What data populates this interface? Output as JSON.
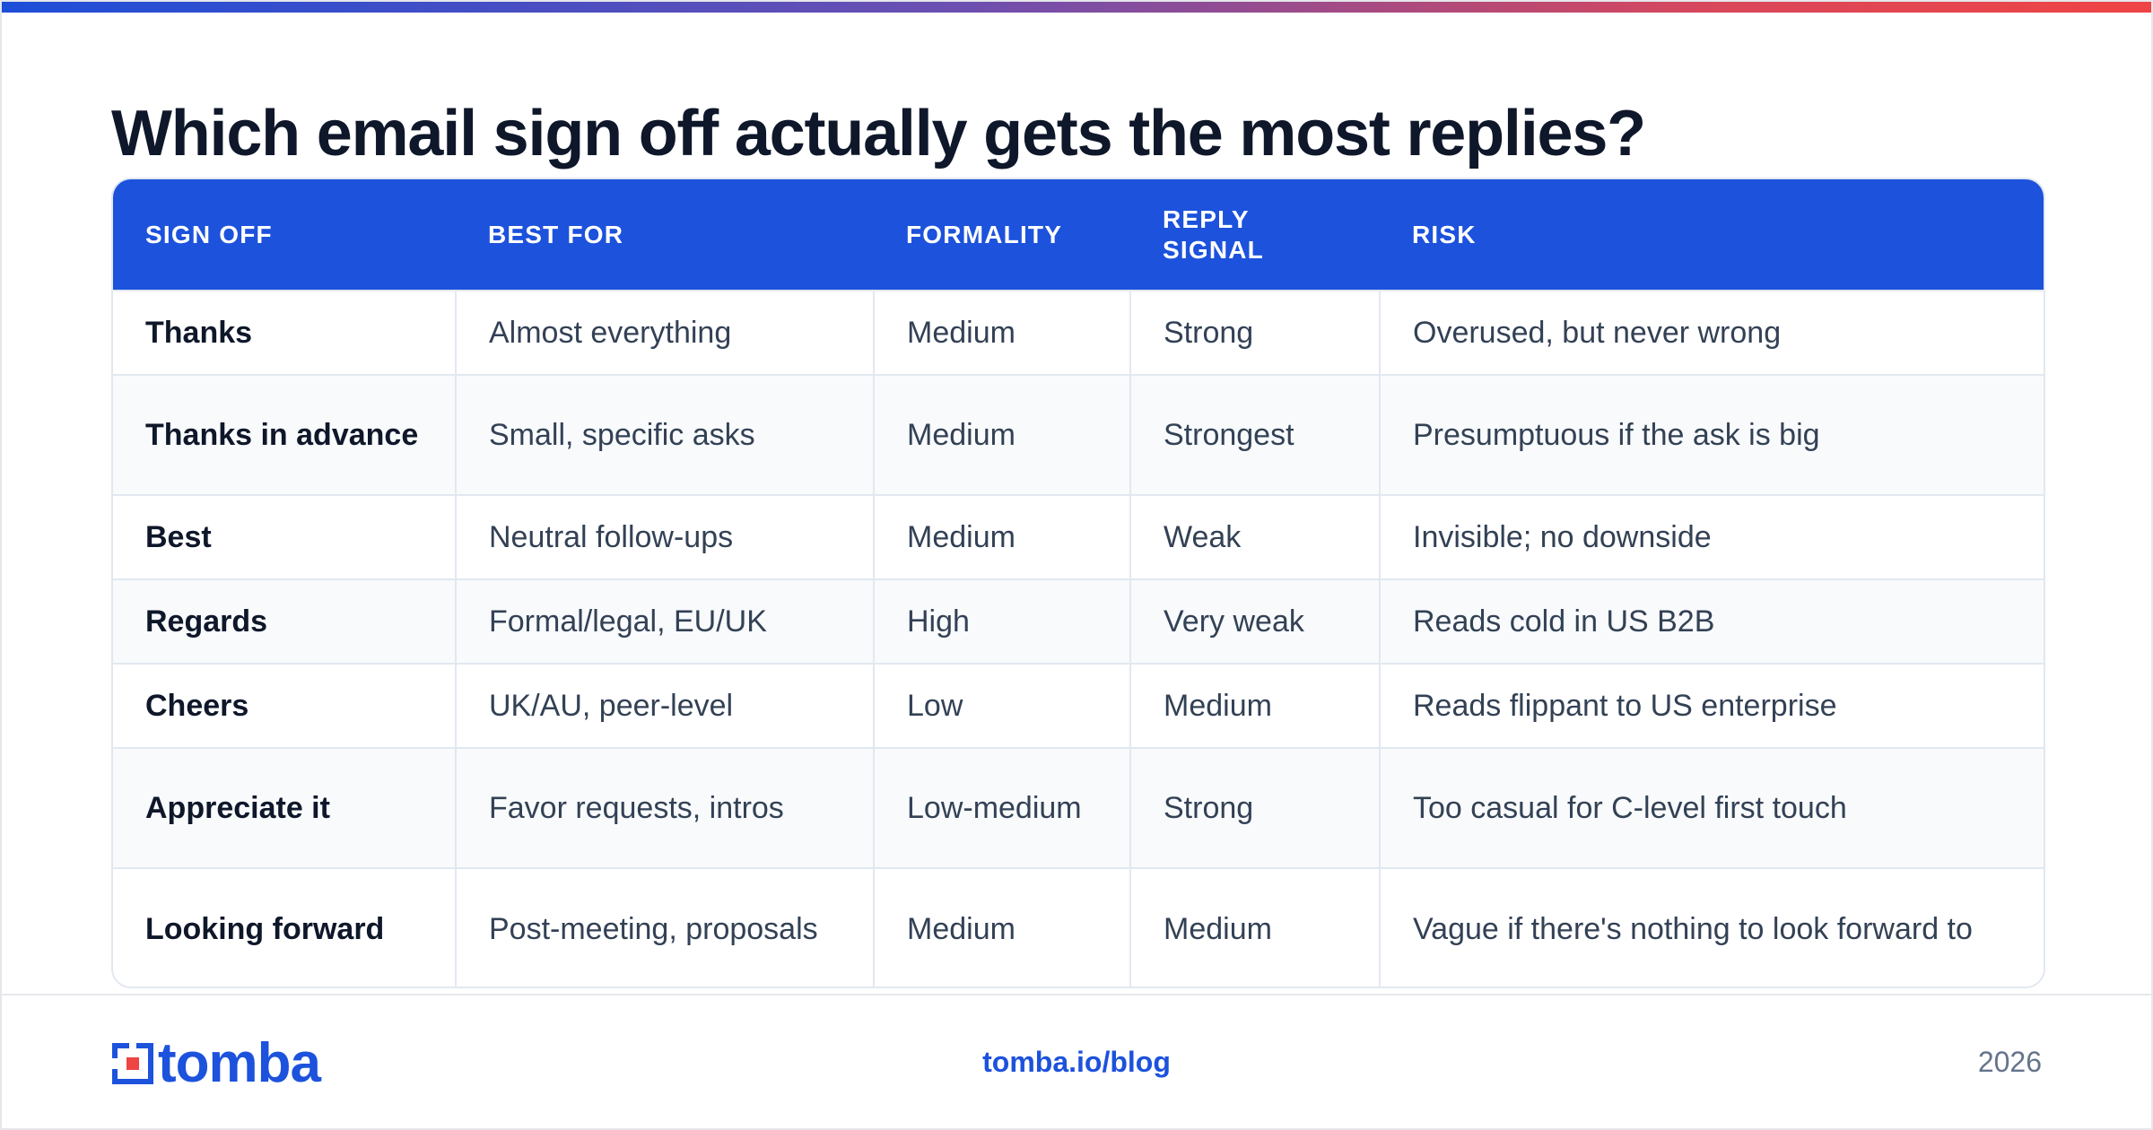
{
  "title": "Which email sign off actually gets the most replies?",
  "table": {
    "columns": [
      "SIGN OFF",
      "BEST FOR",
      "FORMALITY",
      "REPLY SIGNAL",
      "RISK"
    ],
    "reply_header_lines": [
      "REPLY",
      "SIGNAL"
    ],
    "rows": [
      {
        "sign_off": "Thanks",
        "best_for": "Almost everything",
        "formality": "Medium",
        "reply_signal": "Strong",
        "risk": "Overused, but never wrong"
      },
      {
        "sign_off": "Thanks in advance",
        "best_for": "Small, specific asks",
        "formality": "Medium",
        "reply_signal": "Strongest",
        "risk": "Presumptuous if the ask is big"
      },
      {
        "sign_off": "Best",
        "best_for": "Neutral follow-ups",
        "formality": "Medium",
        "reply_signal": "Weak",
        "risk": "Invisible; no downside"
      },
      {
        "sign_off": "Regards",
        "best_for": "Formal/legal, EU/UK",
        "formality": "High",
        "reply_signal": "Very weak",
        "risk": "Reads cold in US B2B"
      },
      {
        "sign_off": "Cheers",
        "best_for": "UK/AU, peer-level",
        "formality": "Low",
        "reply_signal": "Medium",
        "risk": "Reads flippant to US enterprise"
      },
      {
        "sign_off": "Appreciate it",
        "best_for": "Favor requests, intros",
        "formality": "Low-medium",
        "reply_signal": "Strong",
        "risk": "Too casual for C-level first touch"
      },
      {
        "sign_off": "Looking forward",
        "best_for": "Post-meeting, proposals",
        "formality": "Medium",
        "reply_signal": "Medium",
        "risk": "Vague if there's nothing to look forward to"
      }
    ]
  },
  "footer": {
    "brand": "tomba",
    "link": "tomba.io/blog",
    "year": "2026"
  },
  "colors": {
    "accent": "#1c52dc",
    "title": "#0f172a",
    "muted": "#64748b",
    "logo_red": "#ef4444"
  },
  "icons": {
    "logo": "tomba-logo-icon"
  }
}
